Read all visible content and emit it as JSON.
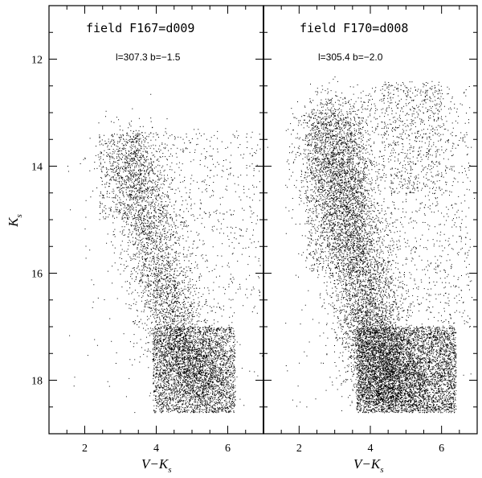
{
  "chart_data": {
    "type": "scatter",
    "ylabel": "K",
    "ylabel_sub": "s",
    "xlabel_main": "V−K",
    "xlabel_sub": "s",
    "xlim": [
      1,
      7
    ],
    "ylim": [
      19,
      11
    ],
    "y_ticks": [
      12,
      14,
      16,
      18
    ],
    "y_tick_labels": [
      "12",
      "14",
      "16",
      "18"
    ],
    "grid": false,
    "panels": [
      {
        "title": "field F167=d009",
        "subtitle": "l=307.3  b=−1.5",
        "x_ticks": [
          2,
          4,
          6
        ],
        "x_tick_labels": [
          "2",
          "4",
          "6"
        ],
        "series": [
          {
            "type": "sequence",
            "points": [
              [
                3.2,
                13.5
              ],
              [
                3.6,
                14.4
              ],
              [
                3.9,
                15.4
              ],
              [
                4.2,
                16.4
              ],
              [
                4.6,
                17.2
              ],
              [
                5.0,
                17.8
              ],
              [
                5.4,
                18.2
              ]
            ],
            "spread_x": 0.45,
            "spread_y": 0.3,
            "count": 3800,
            "marker": "dot"
          },
          {
            "type": "box",
            "x_range": [
              3.9,
              6.2
            ],
            "y_range": [
              17.0,
              18.6
            ],
            "count": 2800,
            "marker": "dot"
          },
          {
            "type": "box",
            "x_range": [
              2.4,
              3.6
            ],
            "y_range": [
              13.4,
              15.0
            ],
            "count": 380,
            "marker": "dot"
          },
          {
            "type": "box",
            "x_range": [
              3.4,
              6.9
            ],
            "y_range": [
              13.3,
              16.8
            ],
            "count": 650,
            "marker": "dot"
          },
          {
            "type": "box",
            "x_range": [
              1.5,
              7.0
            ],
            "y_range": [
              13.5,
              18.8
            ],
            "count": 160,
            "marker": "dot"
          }
        ]
      },
      {
        "title": "field F170=d008",
        "subtitle": "l=305.4  b=−2.0",
        "x_ticks": [
          2,
          4,
          6
        ],
        "x_tick_labels": [
          "2",
          "4",
          "6"
        ],
        "series": [
          {
            "type": "sequence",
            "points": [
              [
                2.9,
                13.0
              ],
              [
                3.0,
                14.0
              ],
              [
                3.3,
                15.0
              ],
              [
                3.7,
                16.0
              ],
              [
                4.0,
                17.0
              ],
              [
                4.4,
                17.8
              ],
              [
                4.8,
                18.3
              ]
            ],
            "spread_x": 0.5,
            "spread_y": 0.3,
            "count": 6500,
            "marker": "dot"
          },
          {
            "type": "box",
            "x_range": [
              3.6,
              6.4
            ],
            "y_range": [
              17.0,
              18.6
            ],
            "count": 4800,
            "marker": "dot"
          },
          {
            "type": "box",
            "x_range": [
              2.2,
              3.8
            ],
            "y_range": [
              13.0,
              16.0
            ],
            "count": 900,
            "marker": "dot"
          },
          {
            "type": "box",
            "x_range": [
              4.3,
              6.0
            ],
            "y_range": [
              12.4,
              14.5
            ],
            "count": 500,
            "marker": "dot"
          },
          {
            "type": "box",
            "x_range": [
              3.5,
              6.8
            ],
            "y_range": [
              12.5,
              17.0
            ],
            "count": 1100,
            "marker": "dot"
          },
          {
            "type": "box",
            "x_range": [
              1.6,
              7.0
            ],
            "y_range": [
              12.8,
              18.8
            ],
            "count": 250,
            "marker": "dot"
          }
        ]
      }
    ]
  }
}
